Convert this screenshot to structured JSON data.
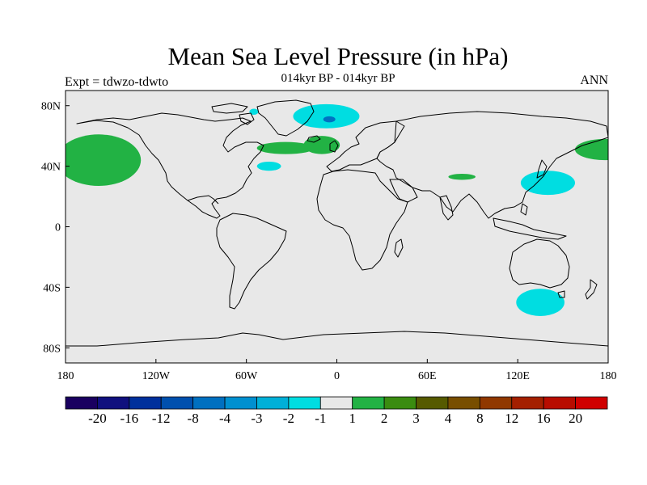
{
  "title": "Mean Sea Level Pressure (in hPa)",
  "left_label": "Expt = tdwzo-tdwto",
  "center_label": "014kyr BP - 014kyr BP",
  "right_label": "ANN",
  "map": {
    "lon_range": [
      -180,
      180
    ],
    "lat_range": [
      -90,
      90
    ],
    "x_ticks": [
      {
        "lon": -180,
        "label": "180"
      },
      {
        "lon": -120,
        "label": "120W"
      },
      {
        "lon": -60,
        "label": "60W"
      },
      {
        "lon": 0,
        "label": "0"
      },
      {
        "lon": 60,
        "label": "60E"
      },
      {
        "lon": 120,
        "label": "120E"
      },
      {
        "lon": 180,
        "label": "180"
      }
    ],
    "y_ticks": [
      {
        "lat": 80,
        "label": "80N"
      },
      {
        "lat": 40,
        "label": "40N"
      },
      {
        "lat": 0,
        "label": "0"
      },
      {
        "lat": -40,
        "label": "40S"
      },
      {
        "lat": -80,
        "label": "80S"
      }
    ],
    "background_color": "#e8e8e8",
    "anomalies": [
      {
        "name": "north-pacific-positive",
        "color": "#22b244",
        "lon": -158,
        "lat": 44,
        "rlon": 28,
        "rlat": 17
      },
      {
        "name": "nw-pacific-positive",
        "color": "#22b244",
        "lon": 178,
        "lat": 51,
        "rlon": 20,
        "rlat": 7
      },
      {
        "name": "north-atlantic-positive-west",
        "color": "#22b244",
        "lon": -34,
        "lat": 52,
        "rlon": 19,
        "rlat": 4
      },
      {
        "name": "north-atlantic-positive-east",
        "color": "#22b244",
        "lon": -10,
        "lat": 54,
        "rlon": 12,
        "rlat": 6
      },
      {
        "name": "central-asia-positive",
        "color": "#22b244",
        "lon": 83,
        "lat": 33,
        "rlon": 9,
        "rlat": 2
      },
      {
        "name": "arctic-negative",
        "color": "#00dde1",
        "lon": -7,
        "lat": 73,
        "rlon": 22,
        "rlat": 8
      },
      {
        "name": "arctic-negative-core",
        "color": "#0072c2",
        "lon": -5,
        "lat": 71,
        "rlon": 4,
        "rlat": 2
      },
      {
        "name": "arctic-negative-north-west",
        "color": "#00dde1",
        "lon": -55,
        "lat": 76,
        "rlon": 3,
        "rlat": 2
      },
      {
        "name": "mid-atlantic-negative",
        "color": "#00dde1",
        "lon": -45,
        "lat": 40,
        "rlon": 8,
        "rlat": 3
      },
      {
        "name": "japan-negative",
        "color": "#00dde1",
        "lon": 140,
        "lat": 29,
        "rlon": 18,
        "rlat": 8
      },
      {
        "name": "southern-ocean-negative",
        "color": "#00dde1",
        "lon": 135,
        "lat": -50,
        "rlon": 16,
        "rlat": 9
      }
    ]
  },
  "colorbar": {
    "colors": [
      "#1a0060",
      "#10107e",
      "#00309c",
      "#0050ae",
      "#0070c0",
      "#0090d0",
      "#00b0d8",
      "#00dde1",
      "#e8e8e8",
      "#22b244",
      "#3a8c10",
      "#565a00",
      "#784e00",
      "#903800",
      "#a42000",
      "#b80c00",
      "#d00000"
    ],
    "labels": [
      "-20",
      "-16",
      "-12",
      "-8",
      "-4",
      "-3",
      "-2",
      "-1",
      "1",
      "2",
      "3",
      "4",
      "8",
      "12",
      "16",
      "20"
    ]
  }
}
